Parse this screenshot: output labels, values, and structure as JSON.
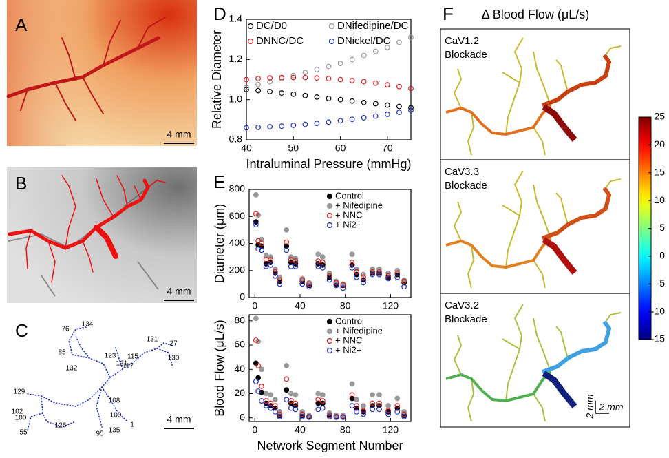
{
  "panel_labels": [
    "A",
    "B",
    "C",
    "D",
    "E",
    "F"
  ],
  "scale_bars": [
    "4 mm",
    "4 mm",
    "4 mm",
    "2 mm",
    "2 mm"
  ],
  "network_labels": [
    "76",
    "134",
    "123",
    "85",
    "121",
    "132",
    "115",
    "117",
    "131",
    "27",
    "130",
    "129",
    "102",
    "100",
    "55",
    "126",
    "108",
    "109",
    "95",
    "135",
    "1"
  ],
  "blockade_labels": [
    [
      "CaV1.2",
      "Blockade"
    ],
    [
      "CaV3.3",
      "Blockade"
    ],
    [
      "CaV3.2",
      "Blockade"
    ]
  ],
  "chart_data": [
    {
      "type": "scatter",
      "ylabel": "Relative Diameter",
      "xlabel": "Intraluminal Pressure (mmHg)",
      "xlim": [
        40,
        75
      ],
      "xticks": [
        40,
        50,
        60,
        70
      ],
      "ylim": [
        0.8,
        1.4
      ],
      "yticks": [
        0.8,
        {
          "value": 1,
          "label": "1.0"
        },
        1.2,
        1.4
      ],
      "legend": "upper-left",
      "legend_columns": 2,
      "x": [
        40,
        42.5,
        45,
        47.5,
        50,
        52.5,
        55,
        57.5,
        60,
        62.5,
        65,
        67.5,
        70,
        72.5,
        75
      ],
      "series": [
        {
          "name": "DC/D0",
          "color": "#000000",
          "marker": "open",
          "values": [
            1.05,
            1.045,
            1.04,
            1.033,
            1.027,
            1.02,
            1.013,
            1.006,
            1.0,
            0.993,
            0.986,
            0.98,
            0.973,
            0.966,
            0.96
          ]
        },
        {
          "name": "DNifedipine/DC",
          "color": "#999999",
          "marker": "open",
          "values": [
            1.06,
            1.075,
            1.09,
            1.105,
            1.12,
            1.135,
            1.15,
            1.165,
            1.18,
            1.2,
            1.22,
            1.24,
            1.26,
            1.285,
            1.31
          ]
        },
        {
          "name": "DNNC/DC",
          "color": "#e02020",
          "marker": "open",
          "values": [
            1.1,
            1.105,
            1.108,
            1.11,
            1.11,
            1.11,
            1.108,
            1.105,
            1.1,
            1.095,
            1.09,
            1.082,
            1.074,
            1.065,
            1.055
          ]
        },
        {
          "name": "DNickel/DC",
          "color": "#2030c0",
          "marker": "open",
          "values": [
            0.86,
            0.862,
            0.865,
            0.868,
            0.872,
            0.877,
            0.882,
            0.888,
            0.895,
            0.902,
            0.91,
            0.918,
            0.927,
            0.937,
            0.947
          ]
        }
      ]
    },
    {
      "type": "scatter",
      "ylabel": "Diameter (μm)",
      "xlim": [
        -5,
        138
      ],
      "xticks": [
        0,
        40,
        80,
        120
      ],
      "ylim": [
        0,
        800
      ],
      "yticks": [
        0,
        200,
        400,
        600,
        800
      ],
      "legend": "upper-right",
      "legend_columns": 1,
      "x": [
        1,
        3,
        6,
        10,
        14,
        18,
        22,
        28,
        32,
        36,
        42,
        48,
        56,
        60,
        66,
        72,
        78,
        86,
        90,
        96,
        104,
        110,
        118,
        126,
        132
      ],
      "series": [
        {
          "name": "Control",
          "color": "#000000",
          "marker": "filled",
          "values": [
            560,
            390,
            380,
            250,
            260,
            180,
            120,
            380,
            260,
            250,
            120,
            90,
            250,
            240,
            150,
            100,
            90,
            240,
            170,
            130,
            180,
            180,
            150,
            170,
            110
          ]
        },
        {
          "name": "+ Nifedipine",
          "color": "#999999",
          "marker": "filled",
          "values": [
            760,
            610,
            430,
            310,
            300,
            210,
            150,
            500,
            300,
            290,
            140,
            110,
            320,
            300,
            180,
            120,
            100,
            320,
            210,
            170,
            210,
            210,
            180,
            200,
            130
          ]
        },
        {
          "name": "+ NNC",
          "color": "#e02020",
          "marker": "open",
          "values": [
            620,
            420,
            400,
            280,
            280,
            190,
            130,
            410,
            280,
            270,
            130,
            100,
            270,
            260,
            160,
            110,
            95,
            260,
            190,
            150,
            190,
            190,
            160,
            180,
            120
          ]
        },
        {
          "name": "+ Ni2+",
          "color": "#2030c0",
          "marker": "open",
          "values": [
            540,
            360,
            350,
            230,
            240,
            160,
            100,
            350,
            230,
            230,
            100,
            80,
            230,
            220,
            130,
            90,
            70,
            220,
            150,
            110,
            170,
            170,
            140,
            150,
            80
          ]
        }
      ]
    },
    {
      "type": "scatter",
      "ylabel": "Blood Flow (μL/s)",
      "xlabel": "Network Segment Number",
      "xlim": [
        -5,
        138
      ],
      "xticks": [
        0,
        40,
        80,
        120
      ],
      "ylim": [
        -3,
        85
      ],
      "yticks": [
        0,
        20,
        40,
        60,
        80
      ],
      "legend": "upper-right",
      "legend_columns": 1,
      "x": [
        1,
        3,
        6,
        10,
        14,
        18,
        22,
        28,
        32,
        36,
        42,
        48,
        56,
        60,
        66,
        72,
        78,
        86,
        90,
        96,
        104,
        110,
        118,
        126,
        132
      ],
      "series": [
        {
          "name": "Control",
          "color": "#000000",
          "marker": "filled",
          "values": [
            45,
            33,
            21,
            12,
            10,
            8,
            2,
            23,
            12,
            10,
            2,
            1,
            12,
            12,
            2,
            1,
            1,
            16,
            8,
            5,
            10,
            10,
            5,
            8,
            2
          ]
        },
        {
          "name": "+ Nifedipine",
          "color": "#999999",
          "marker": "filled",
          "values": [
            82,
            63,
            40,
            20,
            19,
            15,
            5,
            43,
            20,
            19,
            5,
            2,
            20,
            19,
            4,
            2,
            2,
            28,
            15,
            10,
            19,
            19,
            10,
            16,
            5
          ]
        },
        {
          "name": "+ NNC",
          "color": "#e02020",
          "marker": "open",
          "values": [
            64,
            43,
            26,
            14,
            12,
            10,
            3,
            32,
            14,
            12,
            3,
            1,
            15,
            14,
            2,
            1,
            1,
            19,
            10,
            6,
            12,
            12,
            6,
            10,
            3
          ]
        },
        {
          "name": "+ Ni2+",
          "color": "#2030c0",
          "marker": "open",
          "values": [
            30,
            22,
            14,
            10,
            8,
            5,
            1,
            15,
            8,
            7,
            1,
            0.5,
            7,
            8,
            1,
            0.5,
            0.5,
            10,
            5,
            3,
            7,
            7,
            3,
            5,
            1
          ]
        }
      ]
    },
    {
      "type": "colorbar",
      "title": "Δ Blood Flow (μL/s)",
      "colormap": "jet",
      "ylim": [
        -15,
        25
      ],
      "yticks": [
        -15,
        -10,
        -5,
        0,
        5,
        10,
        15,
        20,
        25
      ]
    }
  ]
}
